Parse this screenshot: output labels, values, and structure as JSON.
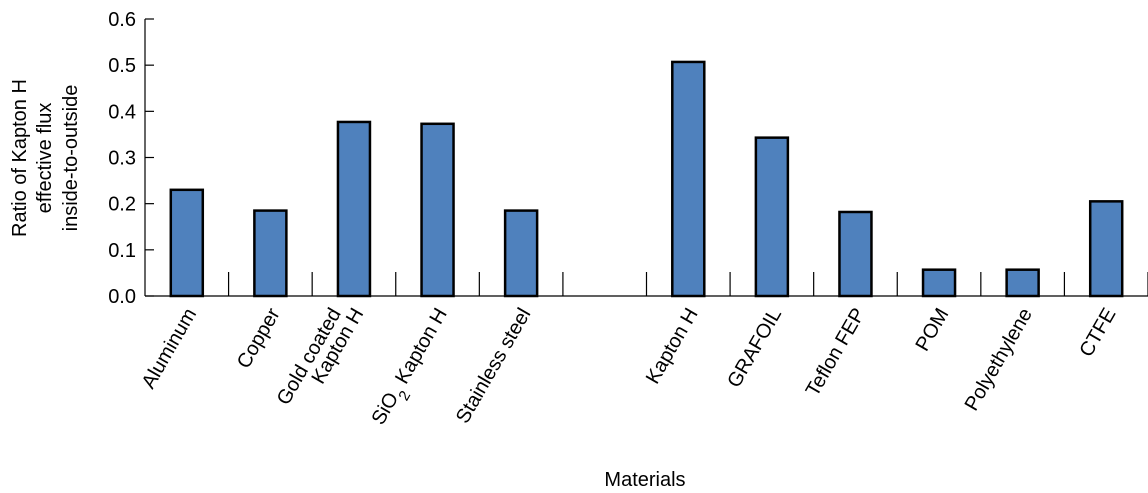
{
  "chart_data": {
    "type": "bar",
    "categories": [
      "Aluminum",
      "Copper",
      "Gold coated Kapton H",
      "SiO2 Kapton H",
      "Stainless steel",
      "",
      "Kapton H",
      "GRAFOIL",
      "Teflon FEP",
      "POM",
      "Polyethylene",
      "CTFE"
    ],
    "category_label_lines": [
      [
        "Aluminum"
      ],
      [
        "Copper"
      ],
      [
        "Gold coated",
        "Kapton H"
      ],
      [
        "SiO2 Kapton H"
      ],
      [
        "Stainless steel"
      ],
      [],
      [
        "Kapton H"
      ],
      [
        "GRAFOIL"
      ],
      [
        "Teflon FEP"
      ],
      [
        "POM"
      ],
      [
        "Polyethylene"
      ],
      [
        "CTFE"
      ]
    ],
    "values": [
      0.23,
      0.185,
      0.377,
      0.373,
      0.185,
      null,
      0.507,
      0.343,
      0.182,
      0.057,
      0.057,
      0.205
    ],
    "ylabel_lines": [
      "Ratio of Kapton H",
      "effective flux",
      "inside-to-outside"
    ],
    "xlabel": "Materials",
    "ylim": [
      0,
      0.6
    ],
    "yticks": [
      "0.0",
      "0.1",
      "0.2",
      "0.3",
      "0.4",
      "0.5",
      "0.6"
    ],
    "bar_color": "#4f81bd",
    "grid": false
  }
}
